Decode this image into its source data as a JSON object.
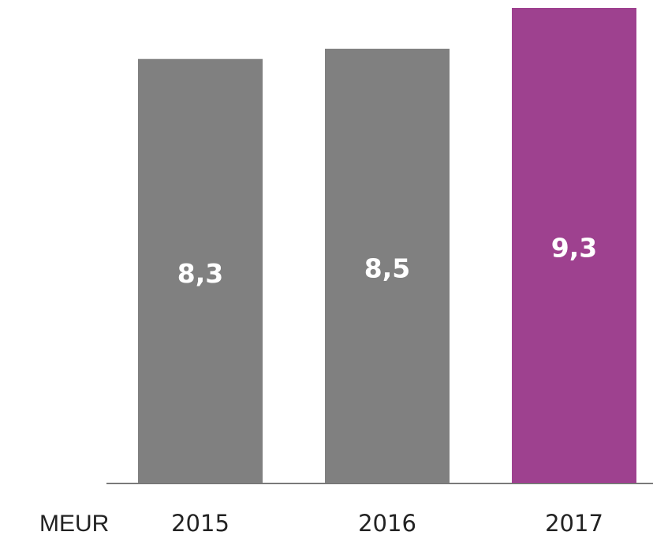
{
  "chart_data": {
    "type": "bar",
    "ylabel": "MEUR",
    "categories": [
      "2015",
      "2016",
      "2017"
    ],
    "values": [
      8.3,
      8.5,
      9.3
    ],
    "value_labels": [
      "8,3",
      "8,5",
      "9,3"
    ],
    "colors": [
      "#808080",
      "#808080",
      "#9e418f"
    ],
    "ylim": [
      0,
      9.3
    ]
  }
}
